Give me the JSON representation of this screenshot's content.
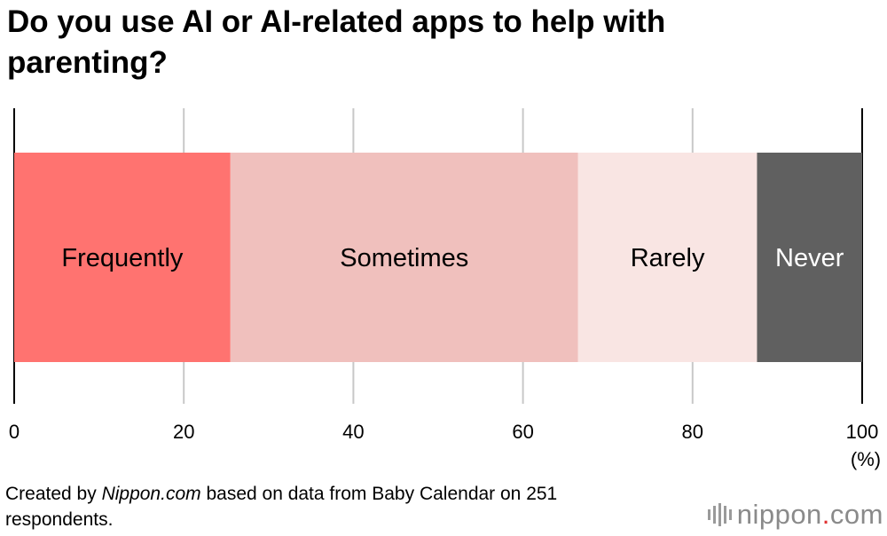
{
  "chart_data": {
    "type": "bar",
    "orientation": "horizontal-stacked",
    "title": "Do you use AI or AI-related apps to help with parenting?",
    "categories": [
      "Frequently",
      "Sometimes",
      "Rarely",
      "Never"
    ],
    "values": [
      25.5,
      41.0,
      21.1,
      12.4
    ],
    "colors": [
      "#ff7370",
      "#f0c0bd",
      "#f9e5e3",
      "#606060"
    ],
    "label_colors": [
      "#000000",
      "#000000",
      "#000000",
      "#ffffff"
    ],
    "xlim": [
      0,
      100
    ],
    "xticks": [
      "0",
      "20",
      "40",
      "60",
      "80",
      "100"
    ],
    "xunit": "(%)",
    "grid": true
  },
  "footnote": {
    "prefix": "Created by ",
    "source_name": "Nippon.com",
    "suffix": " based on data from Baby Calendar on 251 respondents."
  },
  "logo": {
    "name": "nippon",
    "dot": ".",
    "tld": "com"
  }
}
